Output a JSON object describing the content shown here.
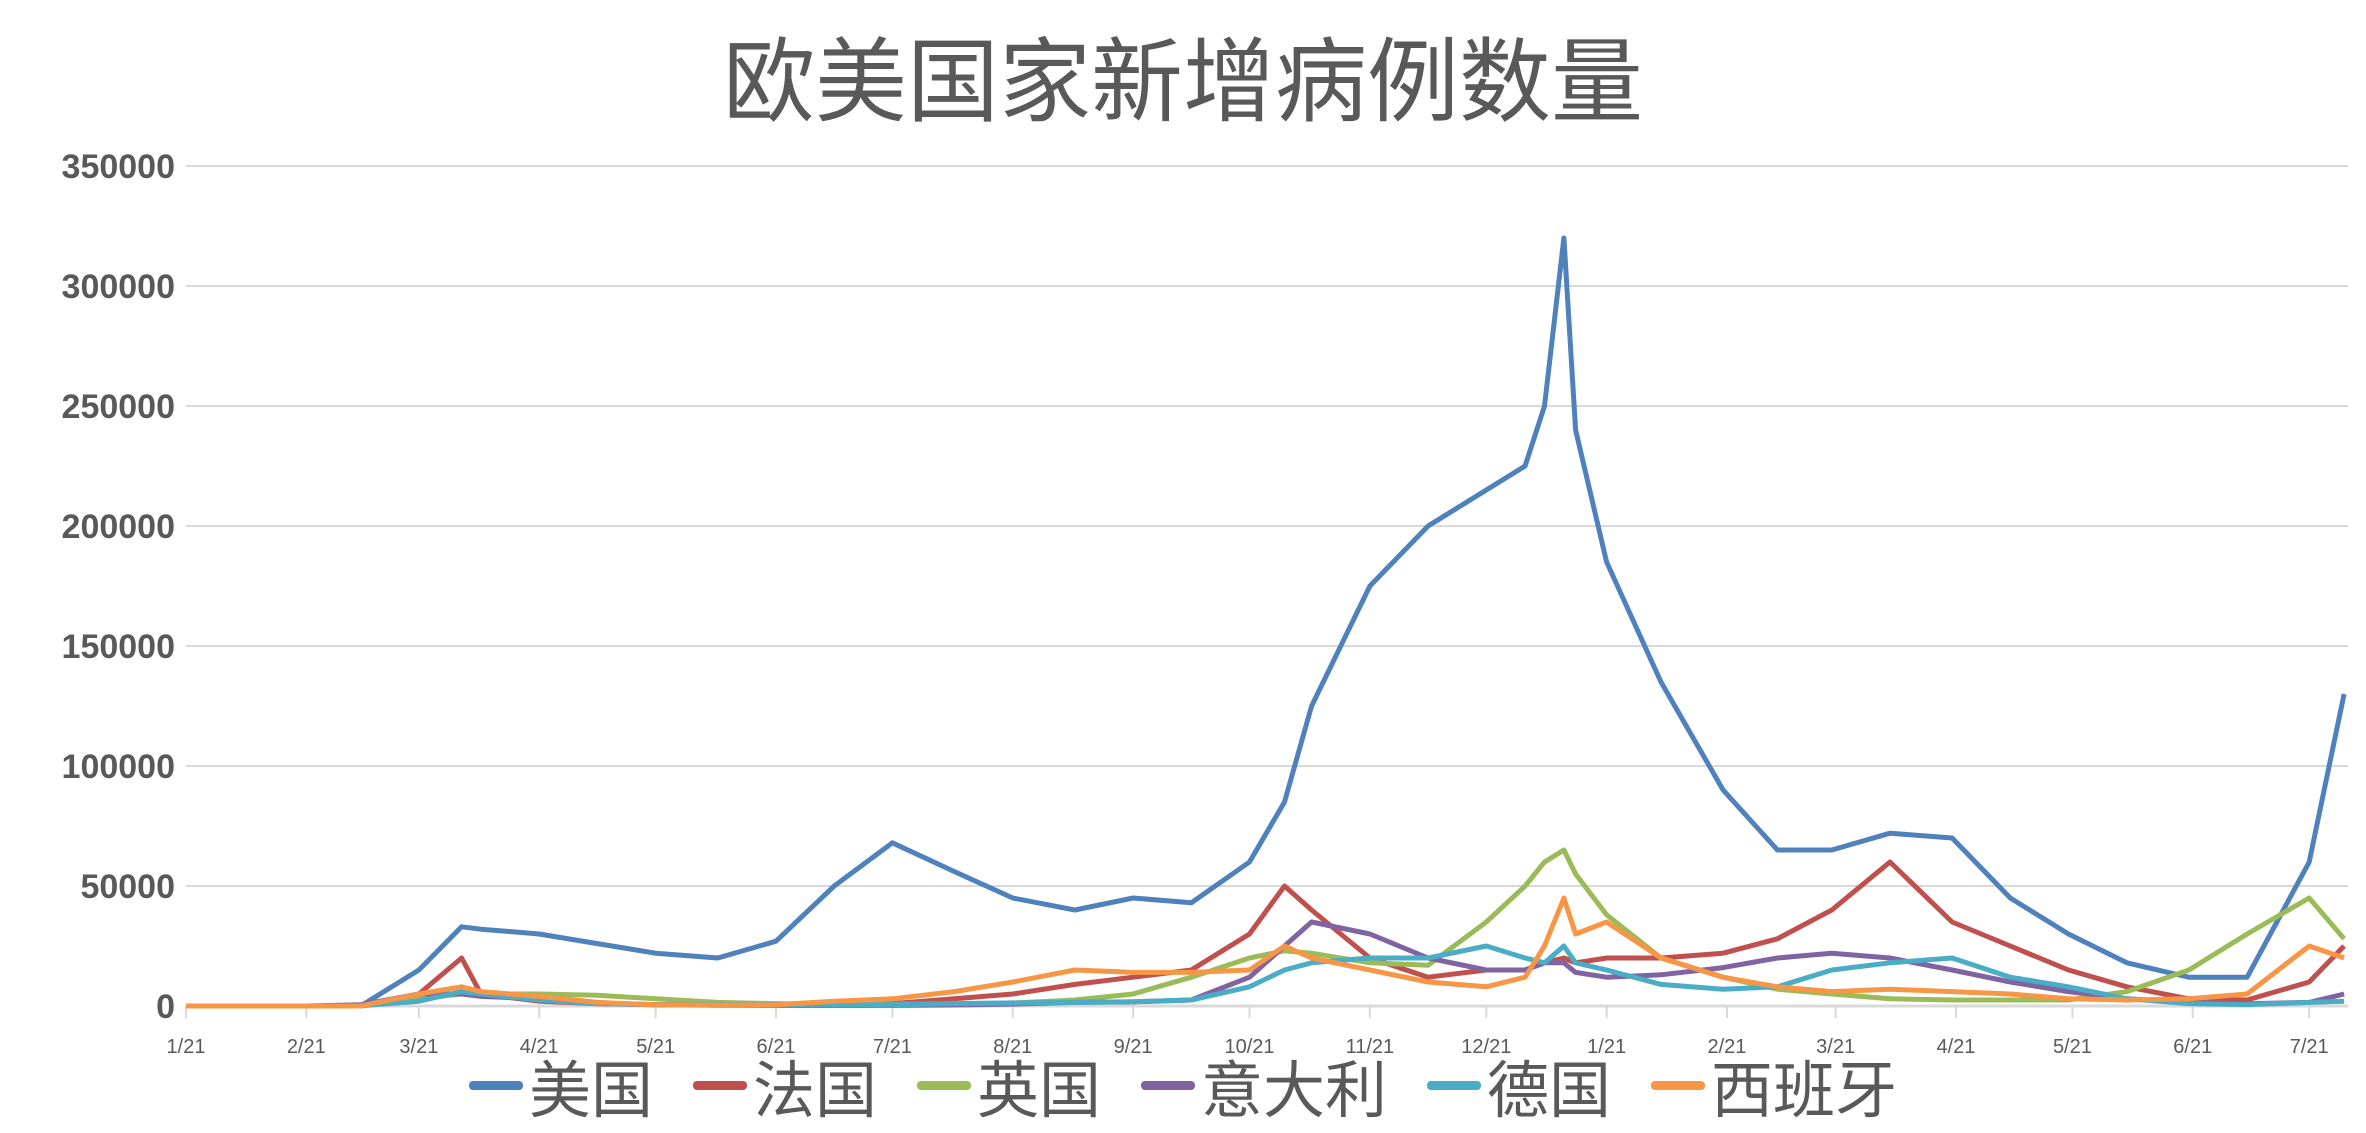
{
  "chart_data": {
    "type": "line",
    "title": "欧美国家新增病例数量",
    "xlabel": "",
    "ylabel": "",
    "ylim": [
      0,
      350000
    ],
    "yticks": [
      0,
      50000,
      100000,
      150000,
      200000,
      250000,
      300000,
      350000
    ],
    "ytick_labels": [
      "0",
      "50000",
      "100000",
      "150000",
      "200000",
      "250000",
      "300000",
      "350000"
    ],
    "x_unit": "days since 1/21/2020",
    "xlim": [
      0,
      557
    ],
    "xticks": [
      0,
      31,
      60,
      91,
      121,
      152,
      182,
      213,
      244,
      274,
      305,
      335,
      366,
      397,
      425,
      456,
      486,
      517,
      547
    ],
    "xtick_labels": [
      "1/21",
      "2/21",
      "3/21",
      "4/21",
      "5/21",
      "6/21",
      "7/21",
      "8/21",
      "9/21",
      "10/21",
      "11/21",
      "12/21",
      "1/21",
      "2/21",
      "3/21",
      "4/21",
      "5/21",
      "6/21",
      "7/21"
    ],
    "grid": true,
    "legend_position": "bottom",
    "x": [
      0,
      31,
      45,
      60,
      71,
      76,
      91,
      106,
      121,
      137,
      152,
      167,
      182,
      198,
      213,
      229,
      244,
      259,
      274,
      283,
      290,
      305,
      320,
      335,
      345,
      350,
      355,
      358,
      366,
      380,
      396,
      410,
      424,
      439,
      455,
      470,
      485,
      500,
      516,
      531,
      547,
      556
    ],
    "series": [
      {
        "name": "美国",
        "color": "#4F81BD",
        "values": [
          0,
          0,
          0,
          15000,
          33000,
          32000,
          30000,
          26000,
          22000,
          20000,
          27000,
          50000,
          68000,
          56000,
          45000,
          40000,
          45000,
          43000,
          60000,
          85000,
          125000,
          175000,
          200000,
          215000,
          225000,
          250000,
          320000,
          240000,
          185000,
          135000,
          90000,
          65000,
          65000,
          72000,
          70000,
          45000,
          30000,
          18000,
          12000,
          12000,
          60000,
          130000
        ]
      },
      {
        "name": "法国",
        "color": "#C0504D",
        "values": [
          0,
          0,
          0,
          5000,
          20000,
          5000,
          2000,
          1000,
          500,
          500,
          500,
          800,
          1000,
          3000,
          5000,
          9000,
          12000,
          15000,
          30000,
          50000,
          40000,
          20000,
          12000,
          15000,
          15000,
          18000,
          20000,
          18000,
          20000,
          20000,
          22000,
          28000,
          40000,
          60000,
          35000,
          25000,
          15000,
          8000,
          3000,
          2500,
          10000,
          25000
        ]
      },
      {
        "name": "英国",
        "color": "#9BBB59",
        "values": [
          0,
          0,
          0,
          3000,
          5000,
          5000,
          5000,
          4500,
          3000,
          1500,
          1000,
          700,
          700,
          900,
          1200,
          2500,
          5000,
          12000,
          20000,
          23000,
          22000,
          18000,
          17000,
          35000,
          50000,
          60000,
          65000,
          55000,
          38000,
          20000,
          12000,
          7000,
          5000,
          3000,
          2500,
          2500,
          2500,
          6000,
          15000,
          30000,
          45000,
          28000
        ]
      },
      {
        "name": "意大利",
        "color": "#8064A2",
        "values": [
          0,
          0,
          500,
          5000,
          5000,
          4000,
          3000,
          1200,
          600,
          300,
          250,
          200,
          250,
          400,
          800,
          1500,
          1700,
          2500,
          12000,
          25000,
          35000,
          30000,
          20000,
          15000,
          15000,
          18000,
          18000,
          14000,
          12000,
          13000,
          16000,
          20000,
          22000,
          20000,
          15000,
          10000,
          6000,
          3000,
          1500,
          900,
          1500,
          5000
        ]
      },
      {
        "name": "德国",
        "color": "#4BACC6",
        "values": [
          0,
          0,
          100,
          2000,
          6000,
          5000,
          2500,
          1000,
          600,
          500,
          600,
          400,
          500,
          1000,
          1300,
          1500,
          1800,
          2500,
          8000,
          15000,
          18000,
          20000,
          20000,
          25000,
          20000,
          18000,
          25000,
          18000,
          15000,
          9000,
          7000,
          8000,
          15000,
          18000,
          20000,
          12000,
          8000,
          3000,
          1000,
          600,
          1500,
          2000
        ]
      },
      {
        "name": "西班牙",
        "color": "#F79646",
        "values": [
          0,
          0,
          0,
          5000,
          8000,
          6000,
          4000,
          1500,
          500,
          300,
          500,
          2000,
          3000,
          6000,
          10000,
          15000,
          14000,
          14000,
          15000,
          25000,
          20000,
          15000,
          10000,
          8000,
          12000,
          25000,
          45000,
          30000,
          35000,
          20000,
          12000,
          8000,
          6000,
          7000,
          6000,
          5000,
          3000,
          2500,
          3000,
          5000,
          25000,
          20000
        ]
      }
    ]
  }
}
